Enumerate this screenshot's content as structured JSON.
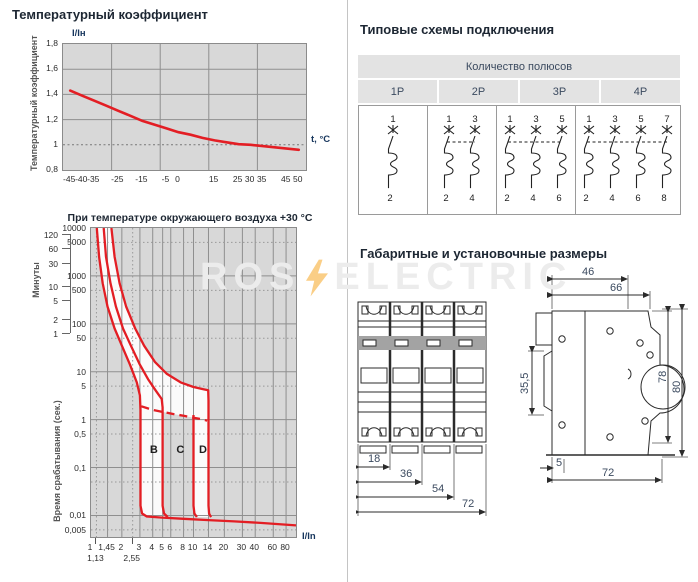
{
  "watermark": {
    "left": "ROS",
    "right": "ELECTRIC",
    "bolt_color": "#f5a623"
  },
  "colors": {
    "accent_red": "#e31e24",
    "accent_blue": "#17365d",
    "chart_bg": "#d8d8d8",
    "grid_line": "#8f8f8f",
    "header_bg": "#e3e3e3",
    "title_text": "#1d2733",
    "dimension_text": "#3b4a5f"
  },
  "temp_chart": {
    "title": "Температурный коэффициент",
    "y_axis_label": "Температурный коэффициент",
    "y_unit": "I/Iн",
    "x_unit": "t, °C",
    "y_ticks": [
      "1,8",
      "1,6",
      "1,4",
      "1,2",
      "1",
      "0,8"
    ],
    "x_ticks": [
      "-45",
      "-40",
      "-35",
      "-25",
      "-15",
      "-5",
      "0",
      "15",
      "25",
      "30",
      "35",
      "45",
      "50"
    ],
    "chart_data": {
      "type": "line",
      "xlabel": "t, °C",
      "ylabel": "I/Iн (температурный коэффициент)",
      "xlim": [
        -48,
        53
      ],
      "ylim": [
        0.8,
        1.8
      ],
      "grid": true,
      "x": [
        -45,
        -40,
        -35,
        -30,
        -25,
        -20,
        -15,
        -10,
        -5,
        0,
        5,
        10,
        15,
        20,
        25,
        30,
        35,
        40,
        45,
        50
      ],
      "y": [
        1.43,
        1.39,
        1.35,
        1.31,
        1.27,
        1.23,
        1.19,
        1.16,
        1.13,
        1.1,
        1.08,
        1.055,
        1.035,
        1.02,
        1.005,
        1.0,
        0.99,
        0.98,
        0.97,
        0.96
      ]
    }
  },
  "trip_chart": {
    "title": "При температуре окружающего воздуха +30 °C",
    "y_axis_label": "Время срабатывания (сек.)",
    "minutes_axis_label": "Минуты",
    "x_unit": "I/In",
    "minute_ticks": [
      "120",
      "60",
      "30",
      "10",
      "5",
      "2",
      "1"
    ],
    "second_ticks": [
      "10000",
      "5000",
      "1000",
      "500",
      "100",
      "50",
      "10",
      "5",
      "1",
      "0,5",
      "0,1",
      "0,01",
      "0,005"
    ],
    "x_ticks": [
      "1",
      "1,45",
      "2",
      "3",
      "4",
      "5",
      "6",
      "8",
      "10",
      "14",
      "20",
      "30",
      "40",
      "60",
      "80"
    ],
    "x_sub_ticks": [
      "1,13",
      "2,55"
    ],
    "chart_data": {
      "type": "line",
      "xscale": "log",
      "yscale": "log",
      "xlabel": "I/In",
      "ylabel": "Время срабатывания, сек",
      "xlim": [
        1,
        100
      ],
      "ylim": [
        0.00355,
        10000
      ],
      "curve_labels": [
        {
          "text": "B",
          "x": 3.75,
          "y": 0.2
        },
        {
          "text": "C",
          "x": 6.8,
          "y": 0.2
        },
        {
          "text": "D",
          "x": 11.3,
          "y": 0.2
        }
      ],
      "trip_bands": {
        "B": [
          3,
          5
        ],
        "C": [
          5,
          10
        ],
        "D": [
          10,
          14
        ]
      },
      "series": [
        {
          "name": "thermal-min-B",
          "dashed": false,
          "points": [
            [
              1.14,
              10000
            ],
            [
              1.2,
              2500
            ],
            [
              1.3,
              700
            ],
            [
              1.45,
              230
            ],
            [
              1.7,
              80
            ],
            [
              2,
              35
            ],
            [
              2.4,
              14
            ],
            [
              2.8,
              6
            ],
            [
              3,
              3.2
            ],
            [
              3.04,
              1.6
            ],
            [
              3.04,
              0.016
            ],
            [
              3.15,
              0.011
            ],
            [
              3.5,
              0.0095
            ],
            [
              5,
              0.009
            ],
            [
              8,
              0.0085
            ],
            [
              14,
              0.008
            ],
            [
              25,
              0.0075
            ],
            [
              45,
              0.007
            ],
            [
              100,
              0.0062
            ]
          ]
        },
        {
          "name": "thermal-max-B-min-C",
          "dashed": false,
          "points": [
            [
              1.33,
              10000
            ],
            [
              1.4,
              2500
            ],
            [
              1.55,
              700
            ],
            [
              1.75,
              230
            ],
            [
              2.05,
              80
            ],
            [
              2.45,
              35
            ],
            [
              3,
              14
            ],
            [
              3.6,
              7
            ],
            [
              4.3,
              4
            ],
            [
              4.9,
              2.7
            ],
            [
              5,
              1.8
            ],
            [
              5,
              0.016
            ],
            [
              5.15,
              0.011
            ],
            [
              5.6,
              0.0093
            ]
          ]
        },
        {
          "name": "max-C-D",
          "dashed": false,
          "points": [
            [
              1.58,
              10000
            ],
            [
              1.7,
              2500
            ],
            [
              1.9,
              700
            ],
            [
              2.2,
              230
            ],
            [
              2.7,
              80
            ],
            [
              3.3,
              35
            ],
            [
              4.2,
              16
            ],
            [
              5.5,
              9
            ],
            [
              7.5,
              6
            ],
            [
              10,
              4.8
            ],
            [
              12.5,
              4.3
            ],
            [
              13.9,
              4.1
            ],
            [
              14,
              2.5
            ],
            [
              14,
              0.016
            ],
            [
              14.2,
              0.011
            ],
            [
              14.8,
              0.0092
            ]
          ]
        },
        {
          "name": "min-D-vertical",
          "dashed": false,
          "points": [
            [
              10,
              1.25
            ],
            [
              10,
              0.016
            ],
            [
              10.2,
              0.011
            ],
            [
              10.8,
              0.0093
            ]
          ]
        },
        {
          "name": "thermal-lower-boundary-dashed",
          "dashed": true,
          "points": [
            [
              3.1,
              1.9
            ],
            [
              4,
              1.6
            ],
            [
              5,
              1.45
            ],
            [
              6.5,
              1.3
            ],
            [
              8,
              1.2
            ],
            [
              10,
              1.1
            ],
            [
              12,
              1.02
            ],
            [
              13.6,
              0.95
            ]
          ]
        }
      ],
      "white_bands": [
        [
          [
            1.14,
            10000
          ],
          [
            1.2,
            2500
          ],
          [
            1.3,
            700
          ],
          [
            1.45,
            230
          ],
          [
            1.7,
            80
          ],
          [
            2,
            35
          ],
          [
            2.4,
            14
          ],
          [
            2.8,
            6
          ],
          [
            3,
            3.2
          ],
          [
            3.04,
            1.6
          ],
          [
            3.04,
            0.016
          ],
          [
            3.15,
            0.011
          ],
          [
            3.5,
            0.0095
          ],
          [
            5.6,
            0.0093
          ],
          [
            5.15,
            0.011
          ],
          [
            5,
            0.016
          ],
          [
            5,
            1.8
          ],
          [
            4.9,
            2.7
          ],
          [
            4.3,
            4
          ],
          [
            3.6,
            7
          ],
          [
            3,
            14
          ],
          [
            2.45,
            35
          ],
          [
            2.05,
            80
          ],
          [
            1.75,
            230
          ],
          [
            1.55,
            700
          ],
          [
            1.4,
            2500
          ],
          [
            1.33,
            10000
          ]
        ],
        [
          [
            1.33,
            10000
          ],
          [
            1.4,
            2500
          ],
          [
            1.55,
            700
          ],
          [
            1.75,
            230
          ],
          [
            2.05,
            80
          ],
          [
            2.45,
            35
          ],
          [
            3,
            14
          ],
          [
            3.6,
            7
          ],
          [
            4.3,
            4
          ],
          [
            4.9,
            2.7
          ],
          [
            5,
            1.8
          ],
          [
            5,
            1.45
          ],
          [
            6.5,
            1.3
          ],
          [
            8,
            1.2
          ],
          [
            10,
            1.1
          ],
          [
            12,
            1.02
          ],
          [
            13.6,
            0.95
          ],
          [
            14,
            2.5
          ],
          [
            13.9,
            4.1
          ],
          [
            12.5,
            4.3
          ],
          [
            10,
            4.8
          ],
          [
            7.5,
            6
          ],
          [
            5.5,
            9
          ],
          [
            4.2,
            16
          ],
          [
            3.3,
            35
          ],
          [
            2.7,
            80
          ],
          [
            2.2,
            230
          ],
          [
            1.9,
            700
          ],
          [
            1.7,
            2500
          ],
          [
            1.58,
            10000
          ]
        ],
        [
          [
            10,
            1.25
          ],
          [
            10,
            0.016
          ],
          [
            10.2,
            0.011
          ],
          [
            10.8,
            0.0093
          ],
          [
            14.8,
            0.0092
          ],
          [
            14.2,
            0.011
          ],
          [
            14,
            0.016
          ],
          [
            14,
            1.0
          ]
        ]
      ]
    }
  },
  "schemes": {
    "title": "Типовые схемы подключения",
    "header": "Количество полюсов",
    "columns": [
      {
        "label": "1P",
        "top_terminals": [
          "1"
        ],
        "bottom_terminals": [
          "2"
        ]
      },
      {
        "label": "2P",
        "top_terminals": [
          "1",
          "3"
        ],
        "bottom_terminals": [
          "2",
          "4"
        ]
      },
      {
        "label": "3P",
        "top_terminals": [
          "1",
          "3",
          "5"
        ],
        "bottom_terminals": [
          "2",
          "4",
          "6"
        ]
      },
      {
        "label": "4P",
        "top_terminals": [
          "1",
          "3",
          "5",
          "7"
        ],
        "bottom_terminals": [
          "2",
          "4",
          "6",
          "8"
        ]
      }
    ]
  },
  "dimensions": {
    "title": "Габаритные и установочные размеры",
    "front_view": {
      "module_1": "18",
      "module_2": "36",
      "module_3": "54",
      "module_4": "72"
    },
    "side_view": {
      "top_width": "46",
      "full_width": "66",
      "rail_height": "35,5",
      "body_height": "78",
      "full_height": "80",
      "foot_depth": "5",
      "depth": "72"
    }
  }
}
